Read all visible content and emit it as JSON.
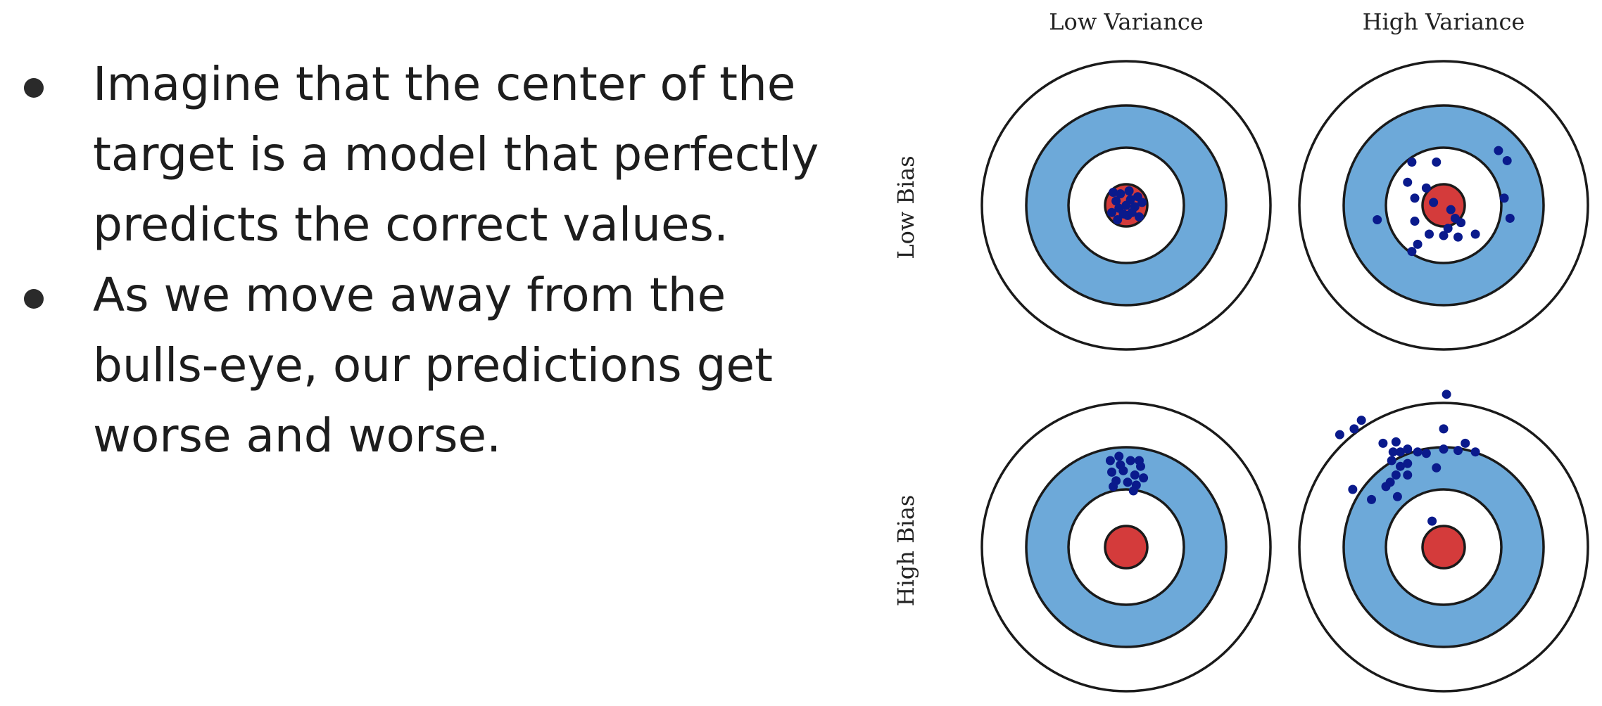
{
  "bullets": [
    "Imagine that the center of the target is a model that perfectly predicts the correct values.",
    "As we move away from the bulls-eye, our predictions get worse and worse."
  ],
  "diagram": {
    "column_headers": [
      "Low Variance",
      "High Variance"
    ],
    "row_headers": [
      "Low Bias",
      "High Bias"
    ],
    "colors": {
      "ring_blue": "#6da9d9",
      "bullseye_red": "#d43b3b",
      "points": "#0a1a8c",
      "stroke": "#1a1a1a"
    },
    "panels": [
      {
        "row": "Low Bias",
        "col": "Low Variance",
        "points": [
          [
            -0.05,
            0.02
          ],
          [
            0.03,
            -0.04
          ],
          [
            -0.02,
            0.06
          ],
          [
            0.06,
            0.01
          ],
          [
            -0.07,
            -0.03
          ],
          [
            0.01,
            0.07
          ],
          [
            0.08,
            -0.06
          ],
          [
            -0.04,
            -0.08
          ],
          [
            0.04,
            0.05
          ],
          [
            -0.1,
            0.05
          ],
          [
            0.02,
            -0.1
          ],
          [
            0.09,
            0.08
          ],
          [
            -0.06,
            0.1
          ],
          [
            0.11,
            -0.02
          ],
          [
            0.0,
            0.0
          ],
          [
            -0.09,
            -0.09
          ]
        ]
      },
      {
        "row": "Low Bias",
        "col": "High Variance",
        "points": [
          [
            -0.22,
            -0.3
          ],
          [
            -0.05,
            -0.3
          ],
          [
            0.38,
            -0.38
          ],
          [
            0.44,
            -0.31
          ],
          [
            -0.25,
            -0.16
          ],
          [
            -0.12,
            -0.12
          ],
          [
            -0.2,
            -0.05
          ],
          [
            -0.07,
            -0.02
          ],
          [
            0.05,
            0.03
          ],
          [
            0.08,
            0.09
          ],
          [
            0.12,
            0.12
          ],
          [
            -0.2,
            0.11
          ],
          [
            0.03,
            0.16
          ],
          [
            -0.1,
            0.2
          ],
          [
            0.1,
            0.22
          ],
          [
            -0.46,
            0.1
          ],
          [
            -0.18,
            0.27
          ],
          [
            0.22,
            0.2
          ],
          [
            0.42,
            -0.05
          ],
          [
            0.46,
            0.09
          ],
          [
            -0.22,
            0.32
          ],
          [
            0.0,
            0.21
          ]
        ]
      },
      {
        "row": "High Bias",
        "col": "Low Variance",
        "points": [
          [
            -0.11,
            -0.6
          ],
          [
            -0.05,
            -0.63
          ],
          [
            0.03,
            -0.6
          ],
          [
            0.1,
            -0.56
          ],
          [
            -0.1,
            -0.52
          ],
          [
            -0.02,
            -0.53
          ],
          [
            0.06,
            -0.5
          ],
          [
            0.12,
            -0.48
          ],
          [
            -0.07,
            -0.46
          ],
          [
            0.01,
            -0.45
          ],
          [
            0.07,
            -0.43
          ],
          [
            0.05,
            -0.39
          ],
          [
            -0.04,
            -0.57
          ],
          [
            0.09,
            -0.6
          ],
          [
            -0.09,
            -0.42
          ]
        ]
      },
      {
        "row": "High Bias",
        "col": "High Variance",
        "points": [
          [
            -0.72,
            -0.78
          ],
          [
            -0.57,
            -0.88
          ],
          [
            -0.62,
            -0.82
          ],
          [
            -0.42,
            -0.72
          ],
          [
            -0.35,
            -0.66
          ],
          [
            -0.33,
            -0.73
          ],
          [
            -0.3,
            -0.66
          ],
          [
            -0.25,
            -0.68
          ],
          [
            -0.36,
            -0.6
          ],
          [
            -0.3,
            -0.56
          ],
          [
            -0.25,
            -0.58
          ],
          [
            -0.18,
            -0.66
          ],
          [
            -0.12,
            -0.65
          ],
          [
            -0.37,
            -0.45
          ],
          [
            -0.33,
            -0.5
          ],
          [
            -0.25,
            -0.5
          ],
          [
            -0.05,
            -0.55
          ],
          [
            -0.5,
            -0.33
          ],
          [
            -0.4,
            -0.42
          ],
          [
            -0.63,
            -0.4
          ],
          [
            -0.32,
            -0.35
          ],
          [
            -0.08,
            -0.18
          ],
          [
            0.0,
            -0.68
          ],
          [
            0.0,
            -0.82
          ],
          [
            0.02,
            -1.06
          ],
          [
            0.1,
            -0.67
          ],
          [
            0.22,
            -0.66
          ],
          [
            0.15,
            -0.72
          ]
        ]
      }
    ]
  }
}
